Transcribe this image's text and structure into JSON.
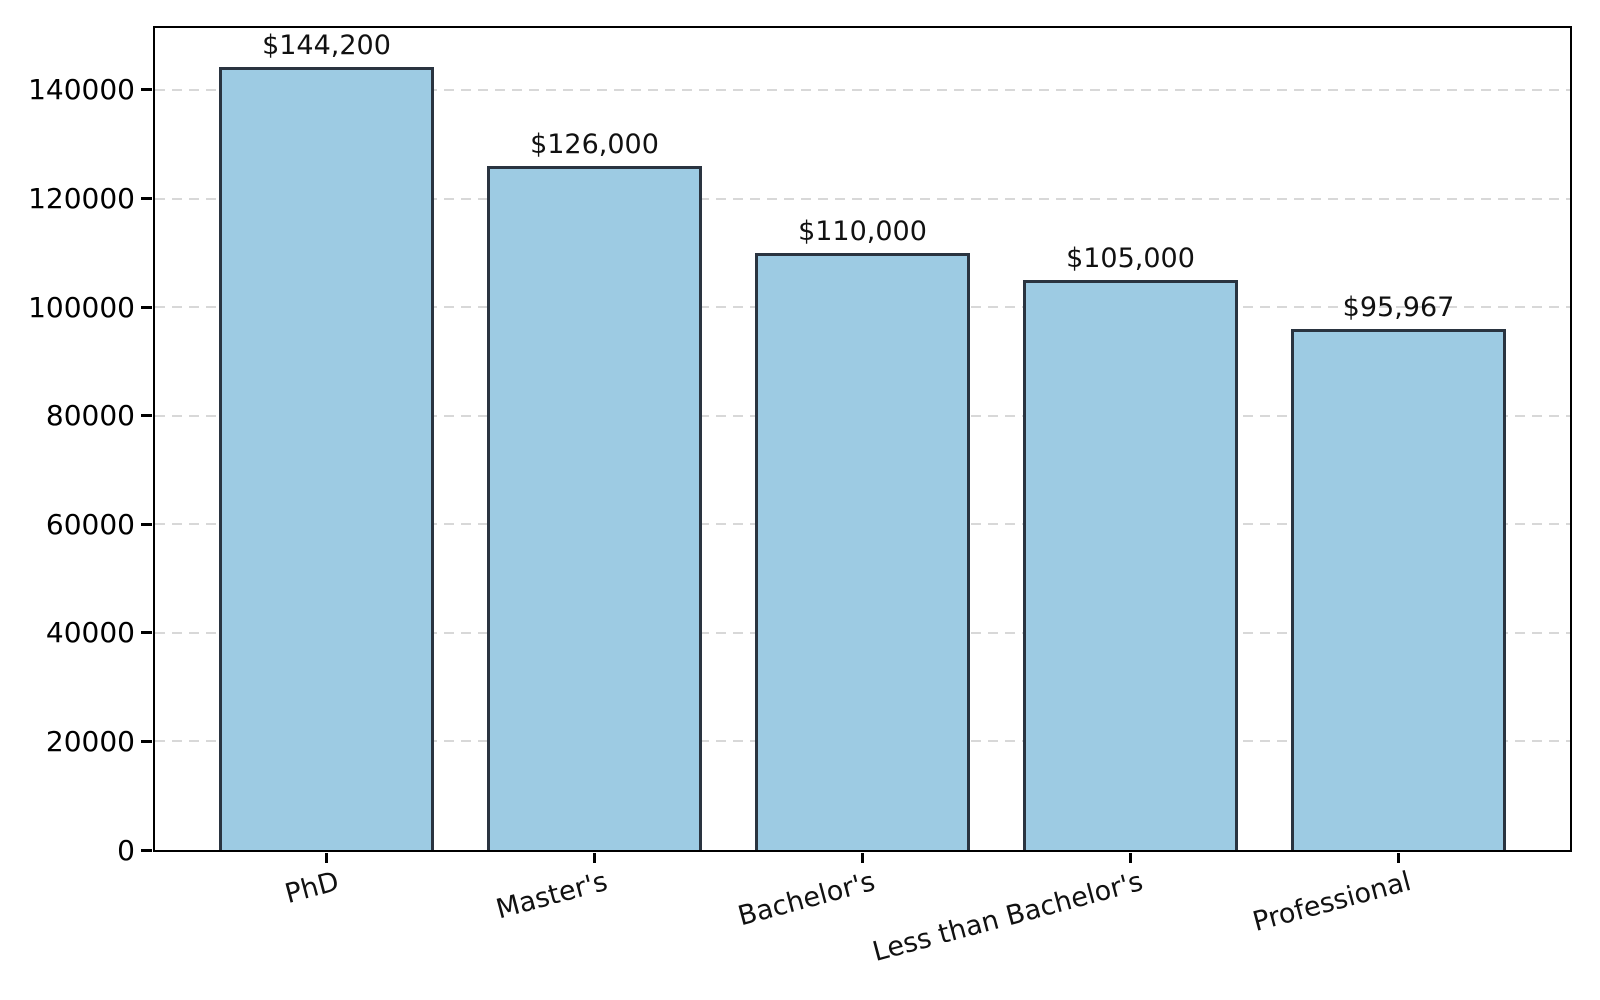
{
  "chart_data": {
    "type": "bar",
    "title": "",
    "xlabel": "",
    "ylabel": "",
    "categories": [
      "PhD",
      "Master's",
      "Bachelor's",
      "Less than Bachelor's",
      "Professional"
    ],
    "values": [
      144200,
      126000,
      110000,
      105000,
      95967
    ],
    "bar_labels": [
      "$144,200",
      "$126,000",
      "$110,000",
      "$105,000",
      "$95,967"
    ],
    "ylim": [
      0,
      151410
    ],
    "yticks": [
      0,
      20000,
      40000,
      60000,
      80000,
      100000,
      120000,
      140000
    ],
    "ytick_labels": [
      "0",
      "20000",
      "40000",
      "60000",
      "80000",
      "100000",
      "120000",
      "140000"
    ],
    "xtick_rotation_deg": 15,
    "grid": {
      "axis": "y",
      "style": "dashed",
      "color": "#d8d8d8"
    },
    "legend": null,
    "colors": {
      "bar_fill": "#9dcbe3",
      "bar_edge": "#2a3440",
      "axis": "#000000",
      "text": "#111111",
      "background": "#ffffff"
    }
  }
}
